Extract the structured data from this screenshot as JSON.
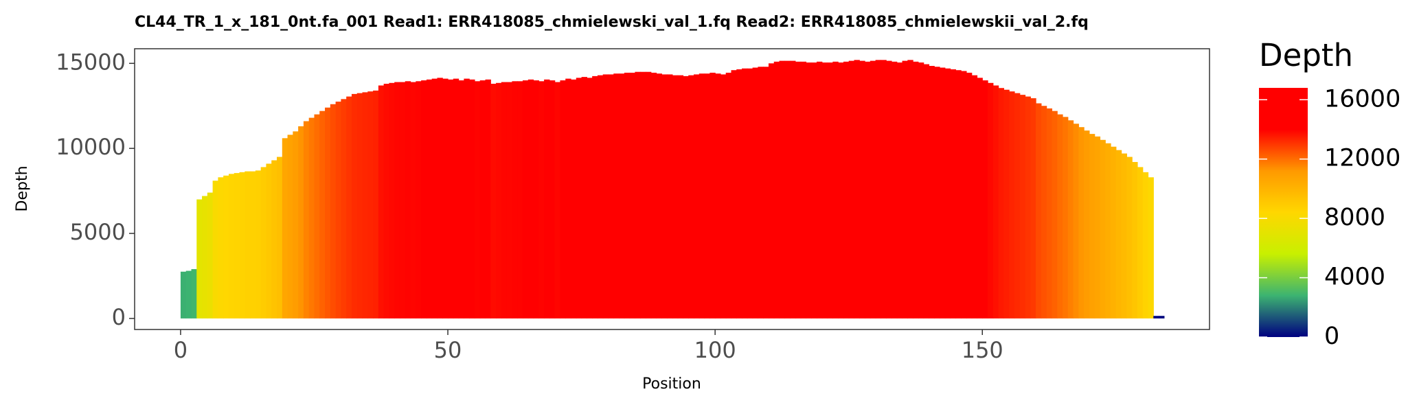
{
  "chart_data": {
    "type": "bar",
    "title": "CL44_TR_1_x_181_0nt.fa_001   Read1: ERR418085_chmielewski_val_1.fq   Read2: ERR418085_chmielewskii_val_2.fq",
    "x_label": "Position",
    "y_label": "Depth",
    "x": [
      0,
      1,
      2,
      3,
      4,
      5,
      6,
      7,
      8,
      9,
      10,
      11,
      12,
      13,
      14,
      15,
      16,
      17,
      18,
      19,
      20,
      21,
      22,
      23,
      24,
      25,
      26,
      27,
      28,
      29,
      30,
      31,
      32,
      33,
      34,
      35,
      36,
      37,
      38,
      39,
      40,
      41,
      42,
      43,
      44,
      45,
      46,
      47,
      48,
      49,
      50,
      51,
      52,
      53,
      54,
      55,
      56,
      57,
      58,
      59,
      60,
      61,
      62,
      63,
      64,
      65,
      66,
      67,
      68,
      69,
      70,
      71,
      72,
      73,
      74,
      75,
      76,
      77,
      78,
      79,
      80,
      81,
      82,
      83,
      84,
      85,
      86,
      87,
      88,
      89,
      90,
      91,
      92,
      93,
      94,
      95,
      96,
      97,
      98,
      99,
      100,
      101,
      102,
      103,
      104,
      105,
      106,
      107,
      108,
      109,
      110,
      111,
      112,
      113,
      114,
      115,
      116,
      117,
      118,
      119,
      120,
      121,
      122,
      123,
      124,
      125,
      126,
      127,
      128,
      129,
      130,
      131,
      132,
      133,
      134,
      135,
      136,
      137,
      138,
      139,
      140,
      141,
      142,
      143,
      144,
      145,
      146,
      147,
      148,
      149,
      150,
      151,
      152,
      153,
      154,
      155,
      156,
      157,
      158,
      159,
      160,
      161,
      162,
      163,
      164,
      165,
      166,
      167,
      168,
      169,
      170,
      171,
      172,
      173,
      174,
      175,
      176,
      177,
      178,
      179,
      180,
      181,
      182,
      183
    ],
    "values": [
      2750,
      2800,
      2900,
      7000,
      7200,
      7400,
      8100,
      8300,
      8400,
      8500,
      8550,
      8600,
      8650,
      8650,
      8700,
      8900,
      9100,
      9300,
      9500,
      10600,
      10800,
      11000,
      11300,
      11600,
      11800,
      12000,
      12200,
      12400,
      12600,
      12750,
      12900,
      13050,
      13200,
      13250,
      13300,
      13350,
      13400,
      13700,
      13800,
      13850,
      13900,
      13900,
      13950,
      13900,
      13950,
      14000,
      14050,
      14100,
      14150,
      14100,
      14050,
      14100,
      14000,
      14100,
      14050,
      13950,
      14000,
      14050,
      13800,
      13850,
      13900,
      13900,
      13950,
      13950,
      14000,
      14050,
      14000,
      13950,
      14050,
      14000,
      13900,
      14000,
      14100,
      14050,
      14150,
      14200,
      14150,
      14250,
      14300,
      14350,
      14350,
      14400,
      14400,
      14450,
      14450,
      14500,
      14500,
      14500,
      14450,
      14400,
      14350,
      14350,
      14300,
      14300,
      14250,
      14300,
      14350,
      14400,
      14400,
      14450,
      14400,
      14350,
      14450,
      14600,
      14650,
      14700,
      14700,
      14750,
      14800,
      14800,
      15000,
      15100,
      15150,
      15150,
      15150,
      15100,
      15100,
      15050,
      15050,
      15100,
      15050,
      15050,
      15100,
      15050,
      15100,
      15150,
      15200,
      15150,
      15100,
      15150,
      15200,
      15200,
      15150,
      15100,
      15050,
      15150,
      15200,
      15100,
      15050,
      14950,
      14850,
      14800,
      14750,
      14700,
      14650,
      14600,
      14550,
      14450,
      14300,
      14150,
      14000,
      13850,
      13700,
      13550,
      13450,
      13350,
      13250,
      13150,
      13050,
      12950,
      12650,
      12500,
      12350,
      12200,
      12000,
      11850,
      11650,
      11450,
      11250,
      11050,
      10850,
      10700,
      10500,
      10300,
      10100,
      9900,
      9700,
      9500,
      9200,
      8900,
      8600,
      8300,
      150,
      150
    ],
    "xlim": [
      -8.6,
      192.5
    ],
    "ylim": [
      -650,
      15860
    ],
    "xticks": [
      0,
      50,
      100,
      150
    ],
    "yticks": [
      0,
      5000,
      10000,
      15000
    ],
    "grid": false,
    "colorbar": {
      "title": "Depth",
      "lim": [
        0,
        16800
      ],
      "ticks": [
        0,
        4000,
        8000,
        12000,
        16000
      ],
      "colors": [
        "#000080",
        "#3cb371",
        "#c8f000",
        "#ffd700",
        "#ff9900",
        "#ff0000",
        "#ff0000"
      ]
    }
  }
}
